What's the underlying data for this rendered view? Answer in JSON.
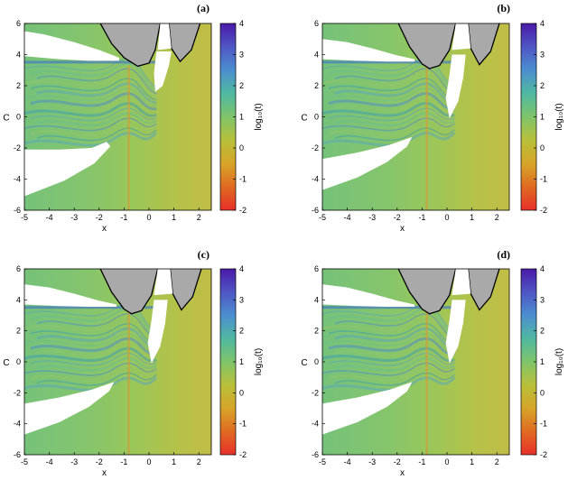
{
  "chart_data": [
    {
      "type": "heatmap",
      "panel_label": "(a)",
      "xlabel": "x",
      "ylabel": "C",
      "colorbar_label": "log₁₀(t)",
      "xlim": [
        -5,
        2.5
      ],
      "ylim": [
        -6,
        6
      ],
      "xticks": [
        -5,
        -4,
        -3,
        -2,
        -1,
        0,
        1,
        2
      ],
      "yticks": [
        -6,
        -4,
        -2,
        0,
        2,
        4,
        6
      ],
      "colorbar_range": [
        -2,
        4
      ],
      "colorbar_ticks": [
        -2,
        -1,
        0,
        1,
        2,
        3,
        4
      ],
      "colormap": [
        "#e8302a",
        "#e06a22",
        "#d6a528",
        "#b8c03a",
        "#7fc46a",
        "#4fb8a0",
        "#4b8fd0",
        "#4f56c4",
        "#4a1aa8"
      ],
      "forbidden_region_color": "#a9a9a9",
      "forbidden_boundary": [
        [
          -1.95,
          6
        ],
        [
          -1.5,
          4.7
        ],
        [
          -1.0,
          3.8
        ],
        [
          -0.45,
          3.25
        ],
        [
          0.0,
          3.45
        ],
        [
          0.25,
          4.3
        ],
        [
          0.45,
          6
        ],
        [
          0.8,
          6
        ],
        [
          0.9,
          4.4
        ],
        [
          1.25,
          3.55
        ],
        [
          1.7,
          4.3
        ],
        [
          2.05,
          6
        ]
      ],
      "escape_basins": [
        "upper-left white wedge",
        "lower-left white wedge",
        "central white strip near x=0.5"
      ]
    },
    {
      "type": "heatmap",
      "panel_label": "(b)",
      "xlabel": "x",
      "ylabel": "C",
      "colorbar_label": "log₁₀(t)",
      "xlim": [
        -5,
        2.5
      ],
      "ylim": [
        -6,
        6
      ],
      "xticks": [
        -5,
        -4,
        -3,
        -2,
        -1,
        0,
        1,
        2
      ],
      "yticks": [
        -6,
        -4,
        -2,
        0,
        2,
        4,
        6
      ],
      "colorbar_range": [
        -2,
        4
      ],
      "colorbar_ticks": [
        -2,
        -1,
        0,
        1,
        2,
        3,
        4
      ],
      "colormap": [
        "#e8302a",
        "#e06a22",
        "#d6a528",
        "#b8c03a",
        "#7fc46a",
        "#4fb8a0",
        "#4b8fd0",
        "#4f56c4",
        "#4a1aa8"
      ],
      "forbidden_region_color": "#a9a9a9",
      "forbidden_boundary": [
        [
          -1.95,
          6
        ],
        [
          -1.5,
          4.5
        ],
        [
          -1.0,
          3.4
        ],
        [
          -0.7,
          3.1
        ],
        [
          -0.3,
          3.3
        ],
        [
          0.1,
          4.3
        ],
        [
          0.35,
          6
        ],
        [
          0.85,
          6
        ],
        [
          0.95,
          4.4
        ],
        [
          1.3,
          3.35
        ],
        [
          1.75,
          4.2
        ],
        [
          2.1,
          6
        ]
      ],
      "escape_basins": [
        "upper-left white wedge",
        "lower-left white wedge",
        "central white strip near x=0.3"
      ]
    },
    {
      "type": "heatmap",
      "panel_label": "(c)",
      "xlabel": "x",
      "ylabel": "C",
      "colorbar_label": "log₁₀(t)",
      "xlim": [
        -5,
        2.5
      ],
      "ylim": [
        -6,
        6
      ],
      "xticks": [
        -5,
        -4,
        -3,
        -2,
        -1,
        0,
        1,
        2
      ],
      "yticks": [
        -6,
        -4,
        -2,
        0,
        2,
        4,
        6
      ],
      "colorbar_range": [
        -2,
        4
      ],
      "colorbar_ticks": [
        -2,
        -1,
        0,
        1,
        2,
        3,
        4
      ],
      "colormap": [
        "#e8302a",
        "#e06a22",
        "#d6a528",
        "#b8c03a",
        "#7fc46a",
        "#4fb8a0",
        "#4b8fd0",
        "#4f56c4",
        "#4a1aa8"
      ],
      "forbidden_region_color": "#a9a9a9",
      "forbidden_boundary": [
        [
          -1.95,
          6
        ],
        [
          -1.5,
          4.5
        ],
        [
          -1.0,
          3.4
        ],
        [
          -0.7,
          3.1
        ],
        [
          -0.3,
          3.3
        ],
        [
          0.1,
          4.3
        ],
        [
          0.35,
          6
        ],
        [
          0.85,
          6
        ],
        [
          0.95,
          4.4
        ],
        [
          1.3,
          3.35
        ],
        [
          1.75,
          4.2
        ],
        [
          2.1,
          6
        ]
      ],
      "escape_basins": [
        "upper-left white wedge",
        "lower-left white wedge",
        "central white strip near x=0.3"
      ]
    },
    {
      "type": "heatmap",
      "panel_label": "(d)",
      "xlabel": "x",
      "ylabel": "C",
      "colorbar_label": "log₁₀(t)",
      "xlim": [
        -5,
        2.5
      ],
      "ylim": [
        -6,
        6
      ],
      "xticks": [
        -5,
        -4,
        -3,
        -2,
        -1,
        0,
        1,
        2
      ],
      "yticks": [
        -6,
        -4,
        -2,
        0,
        2,
        4,
        6
      ],
      "colorbar_range": [
        -2,
        4
      ],
      "colorbar_ticks": [
        -2,
        -1,
        0,
        1,
        2,
        3,
        4
      ],
      "colormap": [
        "#e8302a",
        "#e06a22",
        "#d6a528",
        "#b8c03a",
        "#7fc46a",
        "#4fb8a0",
        "#4b8fd0",
        "#4f56c4",
        "#4a1aa8"
      ],
      "forbidden_region_color": "#a9a9a9",
      "forbidden_boundary": [
        [
          -1.95,
          6
        ],
        [
          -1.5,
          4.5
        ],
        [
          -1.0,
          3.4
        ],
        [
          -0.7,
          3.1
        ],
        [
          -0.3,
          3.3
        ],
        [
          0.1,
          4.3
        ],
        [
          0.35,
          6
        ],
        [
          0.85,
          6
        ],
        [
          0.95,
          4.4
        ],
        [
          1.3,
          3.35
        ],
        [
          1.75,
          4.2
        ],
        [
          2.1,
          6
        ]
      ],
      "escape_basins": [
        "upper-left white wedge",
        "lower-left white wedge",
        "central white strip near x=0.3"
      ]
    }
  ]
}
